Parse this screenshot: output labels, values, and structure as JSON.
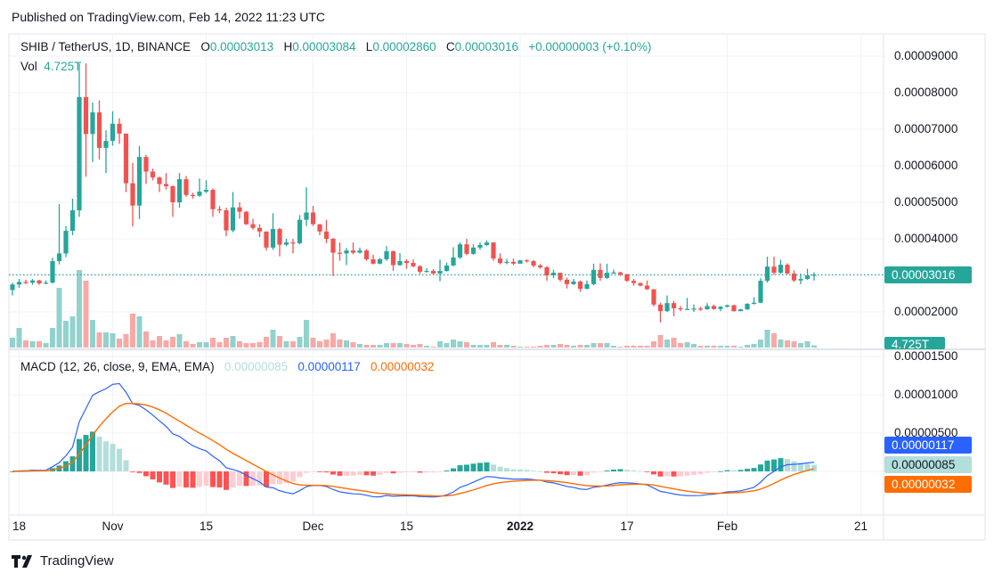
{
  "published": "Published on TradingView.com, Feb 14, 2022 11:23 UTC",
  "legend": {
    "symbol": "SHIB / TetherUS, 1D, BINANCE",
    "o_label": "O",
    "o": "0.00003013",
    "h_label": "H",
    "h": "0.00003084",
    "l_label": "L",
    "l": "0.00002860",
    "c_label": "C",
    "c": "0.00003016",
    "change": "+0.00000003 (+0.10%)",
    "vol_label": "Vol",
    "vol": "4.725T"
  },
  "macd_legend": {
    "title": "MACD (12, 26, close, 9, EMA, EMA)",
    "hist": "0.00000085",
    "macd": "0.00000117",
    "signal": "0.00000032"
  },
  "price_axis": [
    "0.00009000",
    "0.00008000",
    "0.00007000",
    "0.00006000",
    "0.00005000",
    "0.00004000",
    "0.00002000"
  ],
  "price_axis_values": [
    9e-05,
    8e-05,
    7e-05,
    6e-05,
    5e-05,
    4e-05,
    2e-05
  ],
  "last_price_tag": "0.00003016",
  "last_volume_tag": "4.725T",
  "macd_axis": [
    "0.00001500",
    "0.00001000",
    "0.00000500"
  ],
  "macd_axis_values": [
    1.5e-05,
    1e-05,
    5e-06
  ],
  "time_axis": [
    {
      "label": "18",
      "date": "2021-10-18"
    },
    {
      "label": "Nov",
      "date": "2021-11-01"
    },
    {
      "label": "15",
      "date": "2021-11-15"
    },
    {
      "label": "Dec",
      "date": "2021-12-01"
    },
    {
      "label": "15",
      "date": "2021-12-15"
    },
    {
      "label": "2022",
      "date": "2022-01-01"
    },
    {
      "label": "17",
      "date": "2022-01-17"
    },
    {
      "label": "Feb",
      "date": "2022-02-01"
    },
    {
      "label": "21",
      "date": "2022-02-21"
    }
  ],
  "footer": {
    "brand": "TradingView"
  },
  "colors": {
    "up": "#26a69a",
    "down": "#ef5350",
    "vol_up": "#92d2cc",
    "vol_down": "#f7a9a7",
    "macd": "#2962ff",
    "signal": "#ff6d00",
    "hist_up_strong": "#26a69a",
    "hist_up_weak": "#b2dfdb",
    "hist_down_strong": "#ff5252",
    "hist_down_weak": "#ffcdd2",
    "grid": "#f0f3fa"
  },
  "chart_data": {
    "type": "candlestick",
    "first_date": "2021-10-17",
    "last_date": "2022-02-14",
    "interval": "1D",
    "macd_params": {
      "fast": 12,
      "slow": 26,
      "source": "close",
      "signal": 9
    },
    "open_first": 2.6e-05,
    "o_last": 3.013e-05,
    "c": [
      2.75,
      2.82,
      2.8,
      2.86,
      2.78,
      2.8,
      3.39,
      3.6,
      4.22,
      4.78,
      7.88,
      6.87,
      7.46,
      6.49,
      6.68,
      7.15,
      6.88,
      5.52,
      4.91,
      6.24,
      5.84,
      5.68,
      5.5,
      5.44,
      5.0,
      5.63,
      5.2,
      5.18,
      5.29,
      5.34,
      4.81,
      4.78,
      4.23,
      4.86,
      4.74,
      4.4,
      4.3,
      4.2,
      3.76,
      4.27,
      3.84,
      3.9,
      3.88,
      4.52,
      4.72,
      4.4,
      4.2,
      4.0,
      3.62,
      3.6,
      3.68,
      3.62,
      3.68,
      3.44,
      3.32,
      3.44,
      3.66,
      3.28,
      3.39,
      3.34,
      3.25,
      3.1,
      3.12,
      3.05,
      3.12,
      3.27,
      3.49,
      3.85,
      3.59,
      3.76,
      3.83,
      3.9,
      3.46,
      3.34,
      3.37,
      3.32,
      3.41,
      3.39,
      3.27,
      3.22,
      3.0,
      3.07,
      2.88,
      2.76,
      2.83,
      2.63,
      2.76,
      3.15,
      2.93,
      3.07,
      3.08,
      3.03,
      2.85,
      2.79,
      2.72,
      2.62,
      2.2,
      2.02,
      2.24,
      2.1,
      2.07,
      2.08,
      2.09,
      2.07,
      2.16,
      2.08,
      2.14,
      2.18,
      2.02,
      2.07,
      2.22,
      2.25,
      2.85,
      3.24,
      3.07,
      3.29,
      3.05,
      2.86,
      2.9,
      3.0,
      3.016
    ],
    "h": [
      2.8,
      2.9,
      2.88,
      2.9,
      2.88,
      2.86,
      3.48,
      4.95,
      4.35,
      5.1,
      8.8,
      8.8,
      7.73,
      7.79,
      6.97,
      7.49,
      7.3,
      6.88,
      6.08,
      6.54,
      6.3,
      5.92,
      5.7,
      5.8,
      5.46,
      5.8,
      5.72,
      5.26,
      5.65,
      5.6,
      5.38,
      4.9,
      4.85,
      5.28,
      5.0,
      4.76,
      4.55,
      4.4,
      4.2,
      4.7,
      4.3,
      4.0,
      4.0,
      4.65,
      5.41,
      4.9,
      4.4,
      4.52,
      4.02,
      3.9,
      3.75,
      3.9,
      3.76,
      3.72,
      3.56,
      3.48,
      3.8,
      3.68,
      3.61,
      3.44,
      3.44,
      3.28,
      3.2,
      3.17,
      3.43,
      3.35,
      3.77,
      3.9,
      4.0,
      3.85,
      3.9,
      3.96,
      3.9,
      3.6,
      3.45,
      3.46,
      3.42,
      3.44,
      3.42,
      3.31,
      3.25,
      3.15,
      3.07,
      2.94,
      2.9,
      2.86,
      2.86,
      3.32,
      3.33,
      3.32,
      3.16,
      3.1,
      3.04,
      2.9,
      2.8,
      2.86,
      2.62,
      2.25,
      2.45,
      2.3,
      2.16,
      2.38,
      2.2,
      2.14,
      2.24,
      2.2,
      2.16,
      2.2,
      2.2,
      2.08,
      2.24,
      2.4,
      2.92,
      3.51,
      3.51,
      3.43,
      3.33,
      3.14,
      3.05,
      3.18,
      3.084
    ],
    "l": [
      2.45,
      2.66,
      2.76,
      2.74,
      2.74,
      2.76,
      2.78,
      3.3,
      3.5,
      4.1,
      4.6,
      5.7,
      6.1,
      6.17,
      5.8,
      6.55,
      6.6,
      5.28,
      4.34,
      4.54,
      5.5,
      5.6,
      5.28,
      5.35,
      4.6,
      4.85,
      5.15,
      5.1,
      5.15,
      5.25,
      4.6,
      4.7,
      4.07,
      4.18,
      4.55,
      4.38,
      4.25,
      4.05,
      3.68,
      3.7,
      3.52,
      3.8,
      3.6,
      3.85,
      4.35,
      4.35,
      4.1,
      3.88,
      2.98,
      3.4,
      3.28,
      3.58,
      3.6,
      3.4,
      3.3,
      3.3,
      3.4,
      3.12,
      3.26,
      3.18,
      3.22,
      3.04,
      3.08,
      3.03,
      2.84,
      3.1,
      3.25,
      3.45,
      3.55,
      3.56,
      3.7,
      3.8,
      3.4,
      3.3,
      3.3,
      3.28,
      3.32,
      3.35,
      3.22,
      3.18,
      2.85,
      2.92,
      2.83,
      2.64,
      2.74,
      2.55,
      2.62,
      2.73,
      2.85,
      2.9,
      3.04,
      2.98,
      2.82,
      2.72,
      2.7,
      2.6,
      2.15,
      1.71,
      2.0,
      1.88,
      2.02,
      2.06,
      2.0,
      2.03,
      2.06,
      2.06,
      2.02,
      2.12,
      2.01,
      2.02,
      2.05,
      2.2,
      2.24,
      2.8,
      3.02,
      3.04,
      3.03,
      2.82,
      2.76,
      2.88,
      2.86
    ],
    "price_scale": 1e-05,
    "volume_T": [
      22,
      44,
      16,
      14,
      14,
      10,
      44,
      134,
      60,
      70,
      174,
      150,
      62,
      34,
      34,
      32,
      20,
      30,
      76,
      70,
      36,
      16,
      26,
      16,
      24,
      30,
      14,
      8,
      12,
      12,
      22,
      12,
      22,
      26,
      14,
      10,
      10,
      12,
      24,
      40,
      26,
      14,
      14,
      24,
      62,
      22,
      14,
      18,
      32,
      18,
      16,
      12,
      8,
      6,
      6,
      6,
      10,
      10,
      10,
      8,
      6,
      8,
      4,
      2,
      14,
      10,
      18,
      14,
      12,
      6,
      6,
      6,
      12,
      6,
      6,
      4,
      2,
      2,
      2,
      4,
      6,
      6,
      8,
      6,
      4,
      6,
      6,
      10,
      10,
      10,
      4,
      2,
      4,
      4,
      4,
      4,
      14,
      28,
      18,
      22,
      10,
      12,
      8,
      4,
      4,
      4,
      4,
      4,
      4,
      2,
      6,
      8,
      18,
      40,
      32,
      18,
      16,
      14,
      10,
      14,
      4.725
    ]
  }
}
